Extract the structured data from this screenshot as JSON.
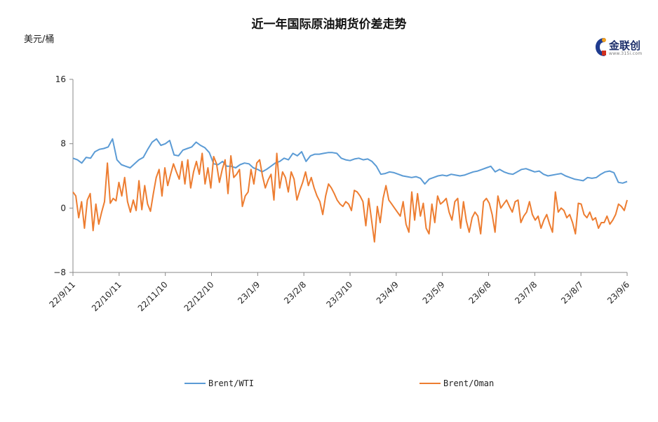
{
  "chart_data": {
    "type": "line",
    "title": "近一年国际原油期货价差走势",
    "ylabel": "美元/桶",
    "ylim": [
      -8,
      16
    ],
    "yticks": [
      "16",
      "8",
      "0",
      "−8"
    ],
    "ytick_values": [
      16,
      8,
      0,
      -8
    ],
    "xtick_labels": [
      "22/9/11",
      "22/10/11",
      "22/11/10",
      "22/12/10",
      "23/1/9",
      "23/2/8",
      "23/3/10",
      "23/4/9",
      "23/5/9",
      "23/6/8",
      "23/7/8",
      "23/8/7",
      "23/9/6"
    ],
    "grid": false,
    "legend_position": "bottom",
    "series": [
      {
        "name": "Brent/WTI",
        "color": "#5b9bd5",
        "values": [
          6.2,
          6.0,
          5.6,
          6.3,
          6.2,
          7.0,
          7.3,
          7.4,
          7.6,
          8.6,
          6.0,
          5.4,
          5.2,
          5.0,
          5.5,
          6.0,
          6.3,
          7.3,
          8.2,
          8.6,
          7.8,
          8.0,
          8.4,
          6.6,
          6.5,
          7.2,
          7.4,
          7.6,
          8.2,
          7.8,
          7.5,
          6.9,
          5.5,
          5.4,
          5.8,
          5.2,
          5.2,
          5.0,
          5.4,
          5.6,
          5.5,
          5.0,
          4.8,
          4.5,
          4.8,
          5.2,
          5.6,
          5.8,
          6.2,
          6.0,
          6.8,
          6.5,
          7.0,
          5.8,
          6.5,
          6.7,
          6.7,
          6.8,
          6.9,
          6.9,
          6.8,
          6.2,
          6.0,
          5.9,
          6.1,
          6.2,
          6.0,
          6.1,
          5.8,
          5.2,
          4.2,
          4.3,
          4.5,
          4.4,
          4.2,
          4.0,
          3.9,
          3.8,
          3.9,
          3.7,
          3.0,
          3.6,
          3.8,
          4.0,
          4.1,
          4.0,
          4.2,
          4.1,
          4.0,
          4.1,
          4.3,
          4.5,
          4.6,
          4.8,
          5.0,
          5.2,
          4.5,
          4.8,
          4.5,
          4.3,
          4.2,
          4.5,
          4.8,
          4.9,
          4.7,
          4.5,
          4.6,
          4.2,
          4.0,
          4.1,
          4.2,
          4.3,
          4.0,
          3.8,
          3.6,
          3.5,
          3.4,
          3.8,
          3.7,
          3.8,
          4.2,
          4.5,
          4.6,
          4.4,
          3.2,
          3.1,
          3.3
        ]
      },
      {
        "name": "Brent/Oman",
        "color": "#ed7d31",
        "values": [
          2.0,
          1.5,
          -1.2,
          0.8,
          -2.5,
          1.0,
          1.8,
          -2.8,
          0.5,
          -2.0,
          -0.5,
          0.8,
          5.6,
          0.6,
          1.2,
          0.9,
          3.2,
          1.5,
          3.8,
          0.8,
          -0.5,
          1.0,
          -0.3,
          3.4,
          -0.2,
          2.8,
          0.5,
          -0.4,
          1.8,
          3.8,
          4.8,
          1.5,
          5.0,
          2.8,
          4.2,
          5.5,
          4.5,
          3.6,
          5.8,
          3.0,
          6.0,
          2.5,
          4.5,
          5.8,
          4.2,
          6.8,
          3.0,
          5.0,
          2.5,
          6.4,
          5.5,
          3.2,
          4.8,
          6.0,
          1.8,
          6.5,
          3.8,
          4.2,
          4.8,
          0.2,
          1.5,
          2.0,
          4.8,
          3.0,
          5.6,
          6.0,
          4.0,
          2.5,
          3.5,
          4.2,
          1.0,
          6.8,
          2.5,
          4.5,
          3.8,
          2.0,
          4.5,
          3.6,
          1.0,
          2.2,
          3.2,
          4.5,
          2.8,
          3.8,
          2.5,
          1.5,
          0.8,
          -0.8,
          1.5,
          3.0,
          2.5,
          1.8,
          1.0,
          0.5,
          0.2,
          0.8,
          0.5,
          -0.3,
          2.2,
          2.0,
          1.5,
          0.8,
          -2.2,
          1.2,
          -1.5,
          -4.2,
          0.2,
          -1.8,
          1.2,
          2.8,
          1.0,
          0.5,
          0.0,
          -0.5,
          -1.0,
          0.8,
          -2.0,
          -3.0,
          2.0,
          -1.5,
          1.8,
          -1.0,
          0.6,
          -2.5,
          -3.2,
          0.5,
          -1.8,
          1.5,
          0.5,
          0.8,
          1.2,
          -0.5,
          -1.5,
          0.8,
          1.2,
          -2.5,
          0.8,
          -1.6,
          -3.0,
          -1.2,
          -0.5,
          -1.0,
          -3.2,
          0.8,
          1.2,
          0.6,
          -0.8,
          -3.0,
          1.5,
          0.0,
          0.5,
          1.0,
          0.2,
          -0.5,
          0.8,
          1.0,
          -1.8,
          -1.0,
          -0.5,
          0.8,
          -0.8,
          -1.5,
          -1.0,
          -2.5,
          -1.5,
          -0.8,
          -2.0,
          -3.0,
          2.0,
          -0.5,
          0.0,
          -0.3,
          -1.2,
          -0.8,
          -1.8,
          -3.2,
          0.6,
          0.5,
          -0.8,
          -1.2,
          -0.5,
          -1.5,
          -1.2,
          -2.5,
          -1.8,
          -1.8,
          -1.0,
          -2.0,
          -1.5,
          -0.8,
          0.5,
          0.2,
          -0.3,
          1.0
        ]
      }
    ]
  },
  "logo": {
    "name": "金联创",
    "subtext": "www.315i.com"
  }
}
